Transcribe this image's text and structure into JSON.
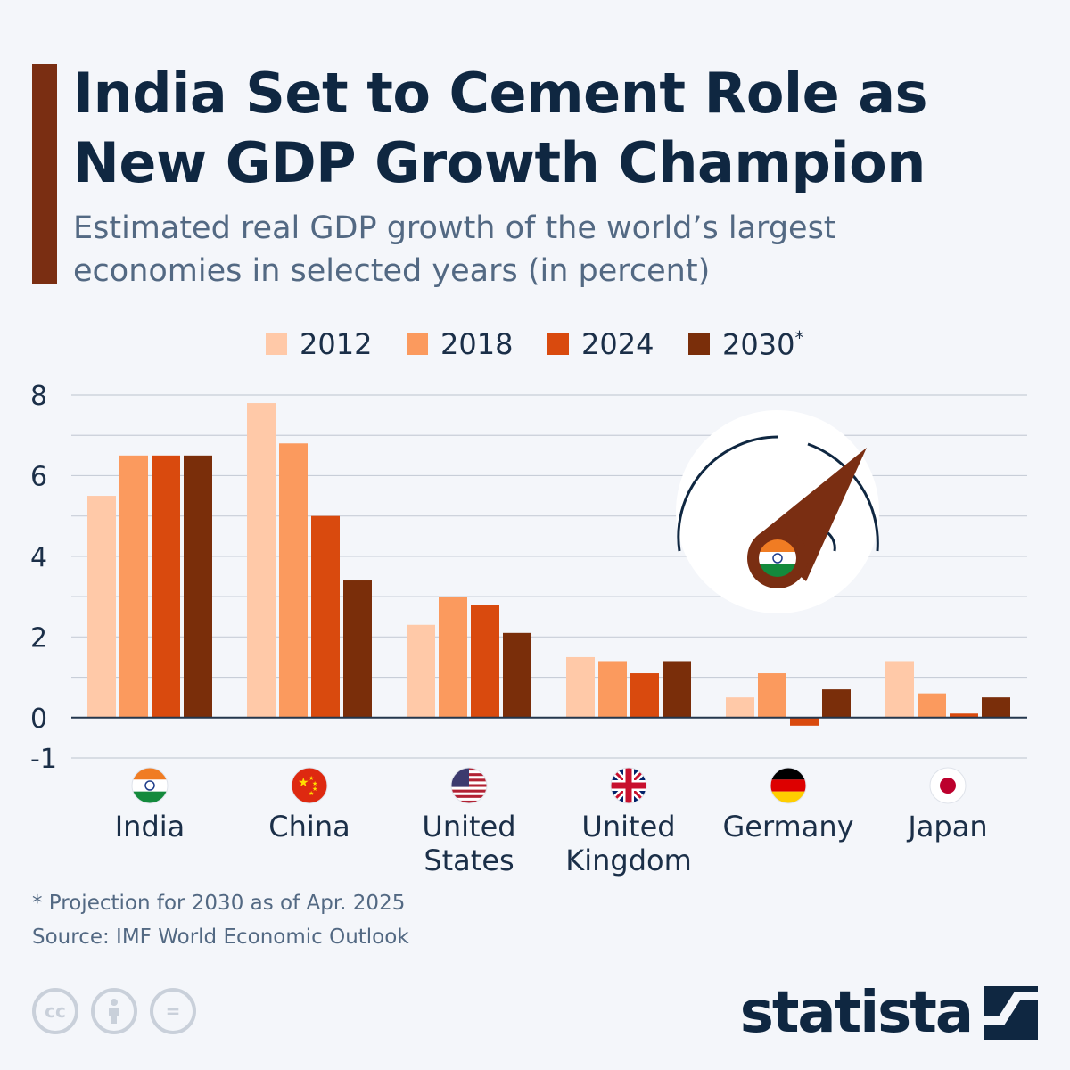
{
  "header": {
    "title": "India Set to Cement Role as New GDP Growth Champion",
    "subtitle": "Estimated real GDP growth of the world’s largest economies in selected years (in percent)"
  },
  "legend": [
    {
      "label": "2012",
      "marker": ""
    },
    {
      "label": "2018",
      "marker": ""
    },
    {
      "label": "2024",
      "marker": ""
    },
    {
      "label": "2030",
      "marker": "*"
    }
  ],
  "colors": {
    "2012": "#ffc9a8",
    "2018": "#fb9a5e",
    "2024": "#d94a0e",
    "2030": "#7a2e0a",
    "accent": "#7a2e12",
    "grid": "#c8ced8",
    "axis": "#23364d"
  },
  "chart_data": {
    "type": "bar",
    "title": "India Set to Cement Role as New GDP Growth Champion",
    "subtitle": "Estimated real GDP growth of the world’s largest economies in selected years (in percent)",
    "categories": [
      "India",
      "China",
      "United States",
      "United Kingdom",
      "Germany",
      "Japan"
    ],
    "series": [
      {
        "name": "2012",
        "values": [
          5.5,
          7.8,
          2.3,
          1.5,
          0.5,
          1.4
        ]
      },
      {
        "name": "2018",
        "values": [
          6.5,
          6.8,
          3.0,
          1.4,
          1.1,
          0.6
        ]
      },
      {
        "name": "2024",
        "values": [
          6.5,
          5.0,
          2.8,
          1.1,
          -0.2,
          0.1
        ]
      },
      {
        "name": "2030*",
        "values": [
          6.5,
          3.4,
          2.1,
          1.4,
          0.7,
          0.5
        ]
      }
    ],
    "ylim": [
      -1,
      8
    ],
    "yticks": [
      "8",
      "6",
      "4",
      "2",
      "0",
      "-1"
    ],
    "grid": true,
    "legend_position": "top-center",
    "category_flags": [
      "india-flag-icon",
      "china-flag-icon",
      "usa-flag-icon",
      "uk-flag-icon",
      "germany-flag-icon",
      "japan-flag-icon"
    ],
    "category_label_lines": [
      [
        "India"
      ],
      [
        "China"
      ],
      [
        "United",
        "States"
      ],
      [
        "United",
        "Kingdom"
      ],
      [
        "Germany"
      ],
      [
        "Japan"
      ]
    ]
  },
  "illustration": {
    "icon": "speedometer-india-icon"
  },
  "footer": {
    "footnote": "* Projection for 2030 as of Apr. 2025",
    "source": "Source: IMF World Economic Outlook",
    "license_icons": [
      {
        "name": "cc-license-icon",
        "glyph": "cc"
      },
      {
        "name": "attribution-icon",
        "glyph": ""
      },
      {
        "name": "no-derivatives-icon",
        "glyph": "="
      }
    ],
    "brand": "statista"
  }
}
